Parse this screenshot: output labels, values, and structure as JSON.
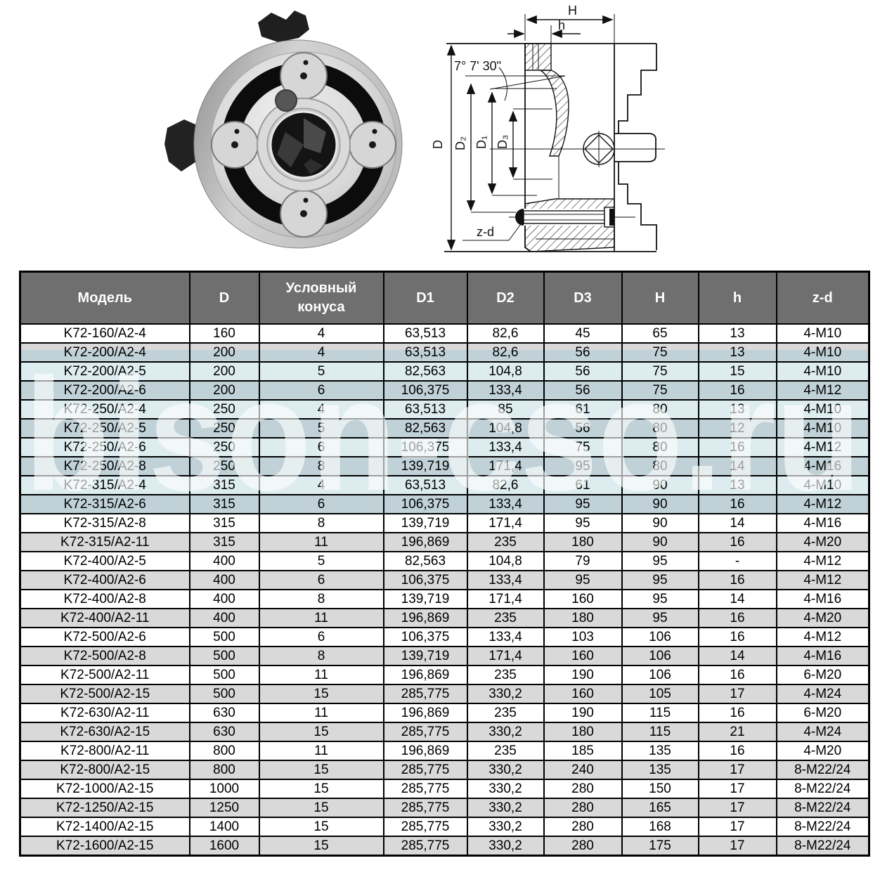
{
  "watermark": {
    "text": "bison-cso.ru"
  },
  "figures": {
    "photo": {
      "name": "three-jaw lathe chuck photo"
    },
    "drawing": {
      "labels": {
        "H": "H",
        "h": "h",
        "D": "D",
        "D1": "D₁",
        "D2": "D₂",
        "D3": "D₃",
        "zd": "z-d",
        "angle": "7° 7' 30\""
      }
    }
  },
  "colors": {
    "header_bg": "#6f6f6f",
    "row_alt": "#d9d9d9",
    "band_light": "#ddecef",
    "band_dark": "#c0d2d8"
  },
  "table": {
    "columns": [
      "Модель",
      "D",
      "Условный конуса",
      "D1",
      "D2",
      "D3",
      "H",
      "h",
      "z-d"
    ],
    "rows": [
      [
        "K72-160/A2-4",
        "160",
        "4",
        "63,513",
        "82,6",
        "45",
        "65",
        "13",
        "4-M10"
      ],
      [
        "K72-200/A2-4",
        "200",
        "4",
        "63,513",
        "82,6",
        "56",
        "75",
        "13",
        "4-M10"
      ],
      [
        "K72-200/A2-5",
        "200",
        "5",
        "82,563",
        "104,8",
        "56",
        "75",
        "15",
        "4-M10"
      ],
      [
        "K72-200/A2-6",
        "200",
        "6",
        "106,375",
        "133,4",
        "56",
        "75",
        "16",
        "4-M12"
      ],
      [
        "K72-250/A2-4",
        "250",
        "4",
        "63,513",
        "85",
        "61",
        "80",
        "13",
        "4-M10"
      ],
      [
        "K72-250/A2-5",
        "250",
        "5",
        "82,563",
        "104,8",
        "56",
        "80",
        "12",
        "4-M10"
      ],
      [
        "K72-250/A2-6",
        "250",
        "6",
        "106,375",
        "133,4",
        "75",
        "80",
        "16",
        "4-M12"
      ],
      [
        "K72-250/A2-8",
        "250",
        "8",
        "139,719",
        "171,4",
        "95",
        "80",
        "14",
        "4-M16"
      ],
      [
        "K72-315/A2-4",
        "315",
        "4",
        "63,513",
        "82,6",
        "61",
        "90",
        "13",
        "4-M10"
      ],
      [
        "K72-315/A2-6",
        "315",
        "6",
        "106,375",
        "133,4",
        "95",
        "90",
        "16",
        "4-M12"
      ],
      [
        "K72-315/A2-8",
        "315",
        "8",
        "139,719",
        "171,4",
        "95",
        "90",
        "14",
        "4-M16"
      ],
      [
        "K72-315/A2-11",
        "315",
        "11",
        "196,869",
        "235",
        "180",
        "90",
        "16",
        "4-M20"
      ],
      [
        "K72-400/A2-5",
        "400",
        "5",
        "82,563",
        "104,8",
        "79",
        "95",
        "-",
        "4-M12"
      ],
      [
        "K72-400/A2-6",
        "400",
        "6",
        "106,375",
        "133,4",
        "95",
        "95",
        "16",
        "4-M12"
      ],
      [
        "K72-400/A2-8",
        "400",
        "8",
        "139,719",
        "171,4",
        "160",
        "95",
        "14",
        "4-M16"
      ],
      [
        "K72-400/A2-11",
        "400",
        "11",
        "196,869",
        "235",
        "180",
        "95",
        "16",
        "4-M20"
      ],
      [
        "K72-500/A2-6",
        "500",
        "6",
        "106,375",
        "133,4",
        "103",
        "106",
        "16",
        "4-M12"
      ],
      [
        "K72-500/A2-8",
        "500",
        "8",
        "139,719",
        "171,4",
        "160",
        "106",
        "14",
        "4-M16"
      ],
      [
        "K72-500/A2-11",
        "500",
        "11",
        "196,869",
        "235",
        "190",
        "106",
        "16",
        "6-M20"
      ],
      [
        "K72-500/A2-15",
        "500",
        "15",
        "285,775",
        "330,2",
        "160",
        "105",
        "17",
        "4-M24"
      ],
      [
        "K72-630/A2-11",
        "630",
        "11",
        "196,869",
        "235",
        "190",
        "115",
        "16",
        "6-M20"
      ],
      [
        "K72-630/A2-15",
        "630",
        "15",
        "285,775",
        "330,2",
        "180",
        "115",
        "21",
        "4-M24"
      ],
      [
        "K72-800/A2-11",
        "800",
        "11",
        "196,869",
        "235",
        "185",
        "135",
        "16",
        "4-M20"
      ],
      [
        "K72-800/A2-15",
        "800",
        "15",
        "285,775",
        "330,2",
        "240",
        "135",
        "17",
        "8-M22/24"
      ],
      [
        "K72-1000/A2-15",
        "1000",
        "15",
        "285,775",
        "330,2",
        "280",
        "150",
        "17",
        "8-M22/24"
      ],
      [
        "K72-1250/A2-15",
        "1250",
        "15",
        "285,775",
        "330,2",
        "280",
        "165",
        "17",
        "8-M22/24"
      ],
      [
        "K72-1400/A2-15",
        "1400",
        "15",
        "285,775",
        "330,2",
        "280",
        "168",
        "17",
        "8-M22/24"
      ],
      [
        "K72-1600/A2-15",
        "1600",
        "15",
        "285,775",
        "330,2",
        "280",
        "175",
        "17",
        "8-M22/24"
      ]
    ]
  }
}
